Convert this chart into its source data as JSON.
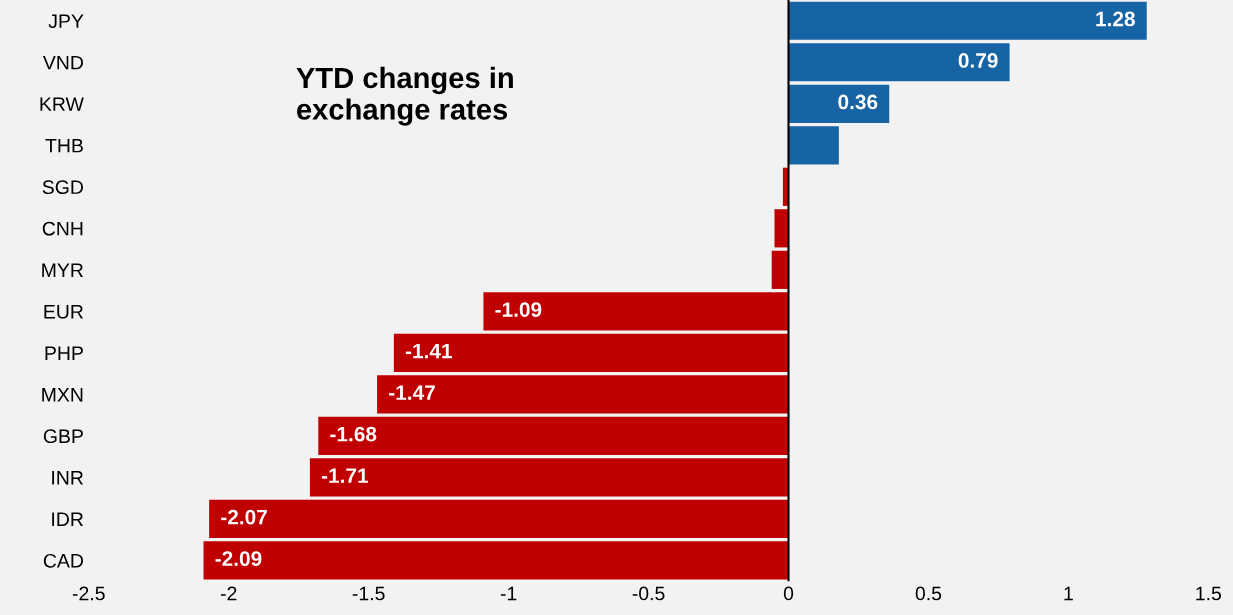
{
  "chart_data": {
    "type": "bar",
    "orientation": "horizontal",
    "title": "YTD changes in exchange rates",
    "categories": [
      "JPY",
      "VND",
      "KRW",
      "THB",
      "SGD",
      "CNH",
      "MYR",
      "EUR",
      "PHP",
      "MXN",
      "GBP",
      "INR",
      "IDR",
      "CAD"
    ],
    "values": [
      1.28,
      0.79,
      0.36,
      0.18,
      -0.02,
      -0.05,
      -0.06,
      -1.09,
      -1.41,
      -1.47,
      -1.68,
      -1.71,
      -2.07,
      -2.09
    ],
    "value_labels": [
      "1.28",
      "0.79",
      "0.36",
      null,
      null,
      null,
      null,
      "-1.09",
      "-1.41",
      "-1.47",
      "-1.68",
      "-1.71",
      "-2.07",
      "-2.09"
    ],
    "colors": [
      "#1764a5",
      "#1764a5",
      "#1764a5",
      "#1764a5",
      "#c00000",
      "#c00000",
      "#c00000",
      "#c00000",
      "#c00000",
      "#c00000",
      "#c00000",
      "#c00000",
      "#c00000",
      "#c00000"
    ],
    "xlim": [
      -2.5,
      1.5
    ],
    "xticks": [
      -2.5,
      -2,
      -1.5,
      -1,
      -0.5,
      0,
      0.5,
      1,
      1.5
    ],
    "ref_lines": [
      {
        "axis": "x",
        "value": 0,
        "color": "#000000"
      }
    ],
    "grid": false,
    "legend": false
  }
}
